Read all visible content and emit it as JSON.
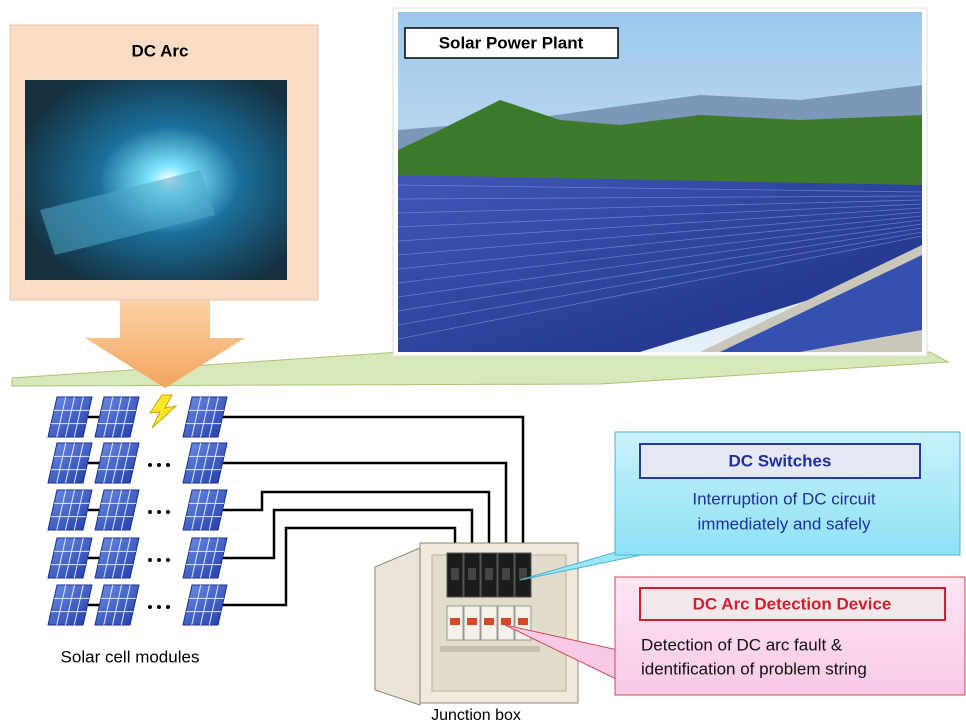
{
  "panels": {
    "dc_arc": {
      "title": "DC Arc"
    },
    "solar_plant": {
      "title": "Solar Power Plant"
    }
  },
  "callouts": [
    {
      "title": "DC Switches",
      "lines": [
        "Interruption of DC circuit",
        "immediately and safely"
      ]
    },
    {
      "title": "DC Arc Detection Device",
      "lines": [
        "Detection of DC arc fault &",
        "identification of problem string"
      ]
    }
  ],
  "labels": {
    "modules": "Solar cell modules",
    "junction_box": "Junction box"
  }
}
